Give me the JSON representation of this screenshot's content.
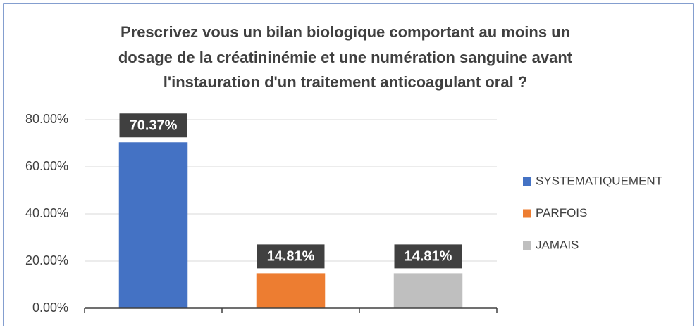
{
  "chart_data": {
    "type": "bar",
    "title": [
      "Prescrivez vous un bilan biologique comportant au moins un",
      "dosage de la créatininémie et une numération sanguine avant",
      "l'instauration d'un traitement anticoagulant oral ?"
    ],
    "categories": [
      "SYSTEMATIQUEMENT",
      "PARFOIS",
      "JAMAIS"
    ],
    "values": [
      70.37,
      14.81,
      14.81
    ],
    "value_labels": [
      "70.37%",
      "14.81%",
      "14.81%"
    ],
    "colors": [
      "#4472c4",
      "#ed7d31",
      "#bfbfbf"
    ],
    "ylim": [
      0,
      80
    ],
    "yticks": [
      {
        "value": 0,
        "label": "0.00%"
      },
      {
        "value": 20,
        "label": "20.00%"
      },
      {
        "value": 40,
        "label": "40.00%"
      },
      {
        "value": 60,
        "label": "60.00%"
      },
      {
        "value": 80,
        "label": "80.00%"
      }
    ],
    "grid": true,
    "legend": "right"
  }
}
